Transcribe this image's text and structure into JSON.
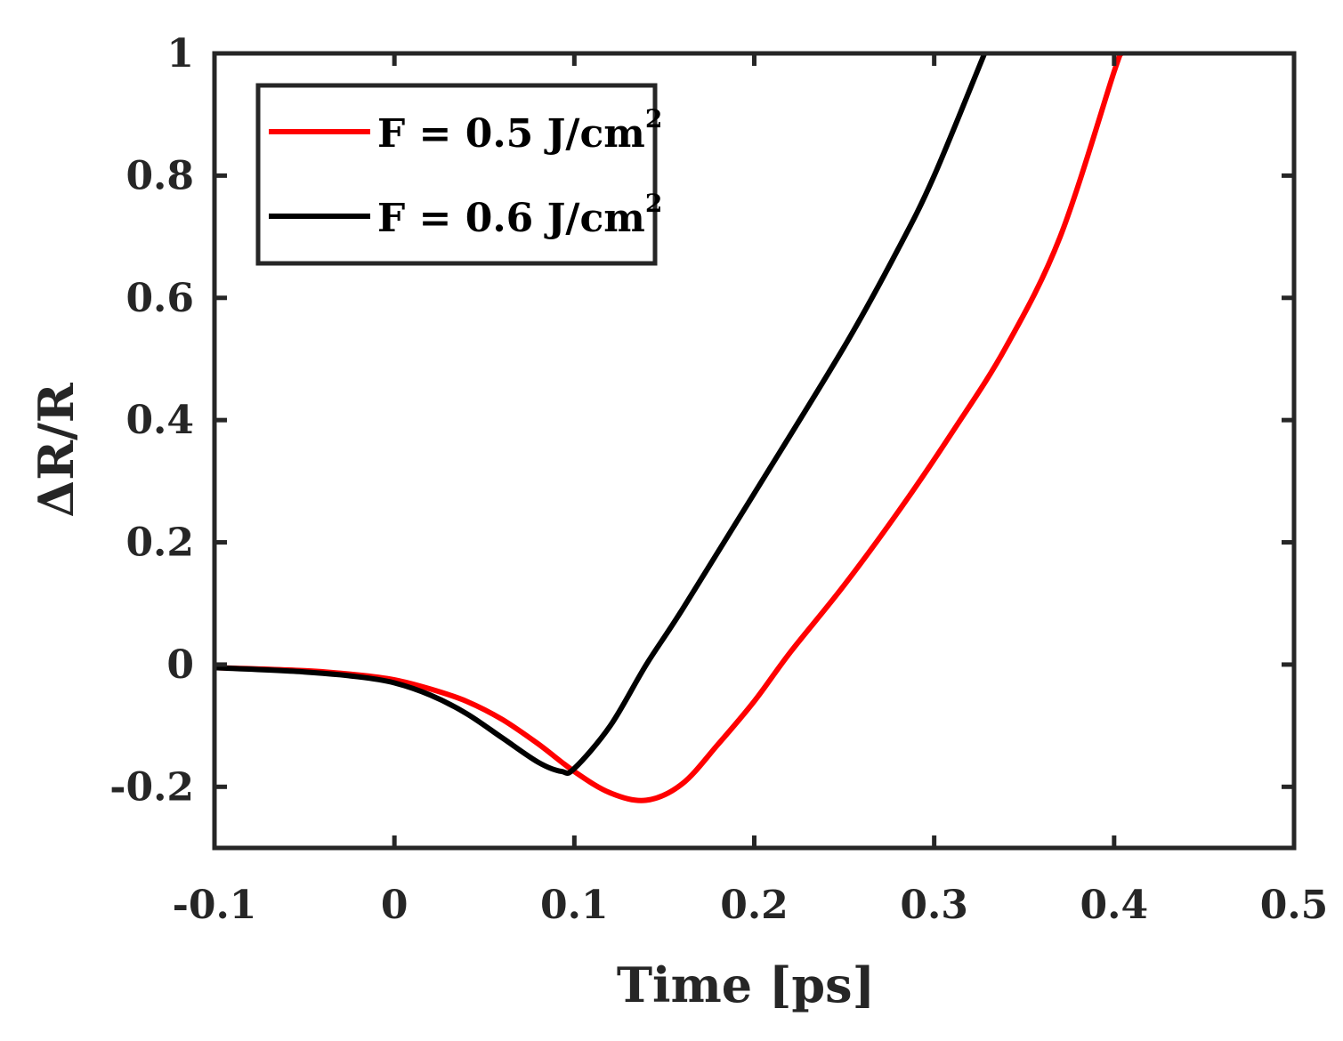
{
  "chart_data": {
    "type": "line",
    "title": "",
    "xlabel": "Time [ps]",
    "ylabel": "ΔR/R",
    "xlim": [
      -0.1,
      0.5
    ],
    "ylim": [
      -0.3,
      1.0
    ],
    "xticks": [
      -0.1,
      0,
      0.1,
      0.2,
      0.3,
      0.4,
      0.5
    ],
    "xtick_labels": [
      "-0.1",
      "0",
      "0.1",
      "0.2",
      "0.3",
      "0.4",
      "0.5"
    ],
    "yticks": [
      -0.2,
      0,
      0.2,
      0.4,
      0.6,
      0.8,
      1
    ],
    "ytick_labels": [
      "-0.2",
      "0",
      "0.2",
      "0.4",
      "0.6",
      "0.8",
      "1"
    ],
    "grid": false,
    "legend_position": "top-left",
    "series": [
      {
        "name": "F = 0.5 J/cm2",
        "legend_main": "F = 0.5 J/cm",
        "legend_sup": "2",
        "color": "#ff0000",
        "x": [
          -0.1,
          -0.05,
          -0.02,
          0.0,
          0.02,
          0.04,
          0.06,
          0.08,
          0.1,
          0.12,
          0.14,
          0.16,
          0.18,
          0.2,
          0.22,
          0.25,
          0.28,
          0.31,
          0.34,
          0.37,
          0.4,
          0.404
        ],
        "y": [
          -0.005,
          -0.01,
          -0.017,
          -0.025,
          -0.04,
          -0.06,
          -0.09,
          -0.13,
          -0.175,
          -0.21,
          -0.222,
          -0.195,
          -0.13,
          -0.06,
          0.02,
          0.13,
          0.25,
          0.38,
          0.52,
          0.7,
          0.97,
          1.0
        ]
      },
      {
        "name": "F = 0.6 J/cm2",
        "legend_main": "F = 0.6 J/cm",
        "legend_sup": "2",
        "color": "#000000",
        "x": [
          -0.1,
          -0.05,
          -0.02,
          0.0,
          0.02,
          0.04,
          0.06,
          0.08,
          0.093,
          0.1,
          0.12,
          0.14,
          0.16,
          0.2,
          0.25,
          0.28,
          0.3,
          0.328
        ],
        "y": [
          -0.005,
          -0.012,
          -0.02,
          -0.03,
          -0.05,
          -0.08,
          -0.12,
          -0.16,
          -0.175,
          -0.17,
          -0.1,
          0.0,
          0.09,
          0.28,
          0.52,
          0.68,
          0.8,
          1.0
        ]
      }
    ]
  }
}
